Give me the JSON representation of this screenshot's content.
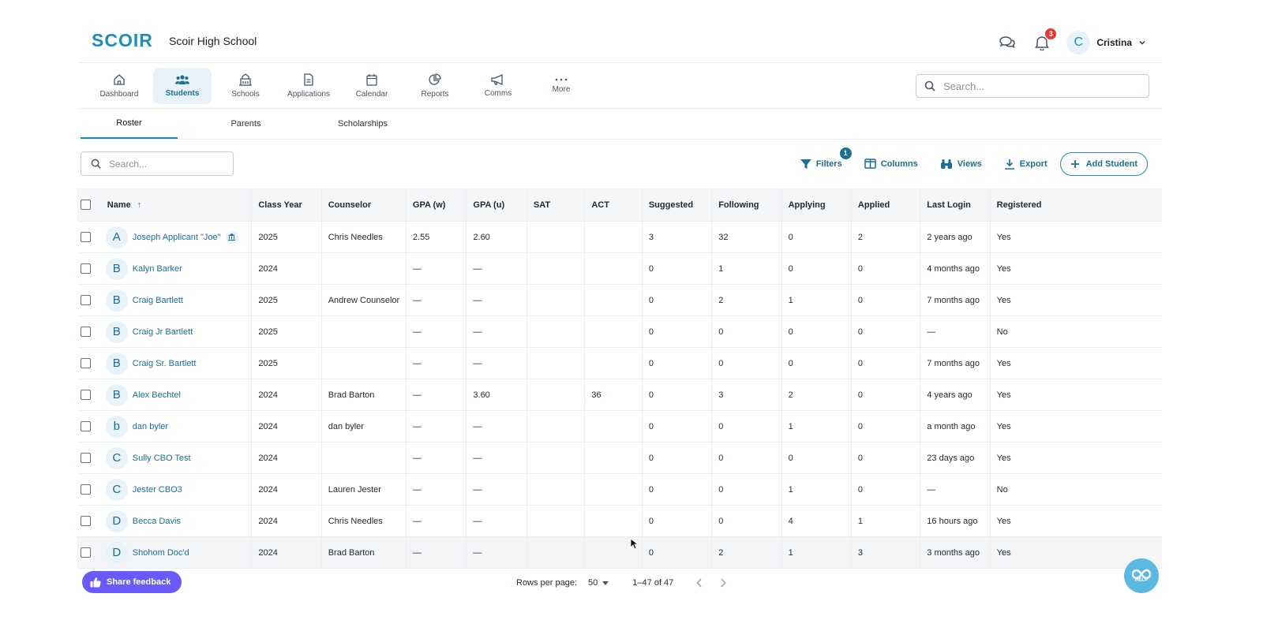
{
  "brand": {
    "logo": "SCOIR",
    "school": "Scoir High School",
    "accent": "#1b8fb8"
  },
  "header": {
    "notifications_count": "3",
    "user_initial": "C",
    "user_name": "Cristina"
  },
  "nav": {
    "items": [
      {
        "label": "Dashboard",
        "icon": "home-icon"
      },
      {
        "label": "Students",
        "icon": "users-icon"
      },
      {
        "label": "Schools",
        "icon": "school-icon"
      },
      {
        "label": "Applications",
        "icon": "document-icon"
      },
      {
        "label": "Calendar",
        "icon": "calendar-icon"
      },
      {
        "label": "Reports",
        "icon": "reports-icon"
      },
      {
        "label": "Comms",
        "icon": "megaphone-icon"
      },
      {
        "label": "More",
        "icon": "more-icon"
      }
    ],
    "active": "Students",
    "search_placeholder": "Search..."
  },
  "subtabs": {
    "items": [
      "Roster",
      "Parents",
      "Scholarships"
    ],
    "active": "Roster"
  },
  "toolbar": {
    "search_placeholder": "Search...",
    "filters_label": "Filters",
    "filters_count": "1",
    "columns_label": "Columns",
    "views_label": "Views",
    "export_label": "Export",
    "add_student_label": "Add Student"
  },
  "table": {
    "columns": [
      "Name",
      "Class Year",
      "Counselor",
      "GPA (w)",
      "GPA (u)",
      "SAT",
      "ACT",
      "Suggested",
      "Following",
      "Applying",
      "Applied",
      "Last Login",
      "Registered"
    ],
    "rows": [
      {
        "initial": "A",
        "name": "Joseph Applicant \"Joe\"",
        "year": "2025",
        "counselor": "Chris Needles",
        "gpaw": "2.55",
        "gpau": "2.60",
        "sat": "",
        "act": "",
        "suggested": "3",
        "following": "32",
        "applying": "0",
        "applied": "2",
        "login": "2 years ago",
        "registered": "Yes"
      },
      {
        "initial": "B",
        "name": "Kalyn Barker",
        "year": "2024",
        "counselor": "",
        "gpaw": "—",
        "gpau": "—",
        "sat": "",
        "act": "",
        "suggested": "0",
        "following": "1",
        "applying": "0",
        "applied": "0",
        "login": "4 months ago",
        "registered": "Yes"
      },
      {
        "initial": "B",
        "name": "Craig Bartlett",
        "year": "2025",
        "counselor": "Andrew Counselor",
        "gpaw": "—",
        "gpau": "—",
        "sat": "",
        "act": "",
        "suggested": "0",
        "following": "2",
        "applying": "1",
        "applied": "0",
        "login": "7 months ago",
        "registered": "Yes"
      },
      {
        "initial": "B",
        "name": "Craig Jr Bartlett",
        "year": "2025",
        "counselor": "",
        "gpaw": "—",
        "gpau": "—",
        "sat": "",
        "act": "",
        "suggested": "0",
        "following": "0",
        "applying": "0",
        "applied": "0",
        "login": "—",
        "registered": "No"
      },
      {
        "initial": "B",
        "name": "Craig Sr. Bartlett",
        "year": "2025",
        "counselor": "",
        "gpaw": "—",
        "gpau": "—",
        "sat": "",
        "act": "",
        "suggested": "0",
        "following": "0",
        "applying": "0",
        "applied": "0",
        "login": "7 months ago",
        "registered": "Yes"
      },
      {
        "initial": "B",
        "name": "Alex Bechtel",
        "year": "2024",
        "counselor": "Brad Barton",
        "gpaw": "—",
        "gpau": "3.60",
        "sat": "",
        "act": "36",
        "suggested": "0",
        "following": "3",
        "applying": "2",
        "applied": "0",
        "login": "4 years ago",
        "registered": "Yes"
      },
      {
        "initial": "b",
        "name": "dan byler",
        "year": "2024",
        "counselor": "dan byler",
        "gpaw": "—",
        "gpau": "—",
        "sat": "",
        "act": "",
        "suggested": "0",
        "following": "0",
        "applying": "1",
        "applied": "0",
        "login": "a month ago",
        "registered": "Yes"
      },
      {
        "initial": "C",
        "name": "Sully CBO Test",
        "year": "2024",
        "counselor": "",
        "gpaw": "—",
        "gpau": "—",
        "sat": "",
        "act": "",
        "suggested": "0",
        "following": "0",
        "applying": "0",
        "applied": "0",
        "login": "23 days ago",
        "registered": "Yes"
      },
      {
        "initial": "C",
        "name": "Jester CBO3",
        "year": "2024",
        "counselor": "Lauren Jester",
        "gpaw": "—",
        "gpau": "—",
        "sat": "",
        "act": "",
        "suggested": "0",
        "following": "0",
        "applying": "1",
        "applied": "0",
        "login": "—",
        "registered": "No"
      },
      {
        "initial": "D",
        "name": "Becca Davis",
        "year": "2024",
        "counselor": "Chris Needles",
        "gpaw": "—",
        "gpau": "—",
        "sat": "",
        "act": "",
        "suggested": "0",
        "following": "0",
        "applying": "4",
        "applied": "1",
        "login": "16 hours ago",
        "registered": "Yes"
      },
      {
        "initial": "D",
        "name": "Shohom Doc'd",
        "year": "2024",
        "counselor": "Brad Barton",
        "gpaw": "—",
        "gpau": "—",
        "sat": "",
        "act": "",
        "suggested": "0",
        "following": "2",
        "applying": "1",
        "applied": "3",
        "login": "3 months ago",
        "registered": "Yes"
      }
    ]
  },
  "footer": {
    "feedback_label": "Share feedback",
    "rows_per_page_label": "Rows per page:",
    "rows_per_page_value": "50",
    "range": "1–47 of 47",
    "help_label": "HELP"
  }
}
